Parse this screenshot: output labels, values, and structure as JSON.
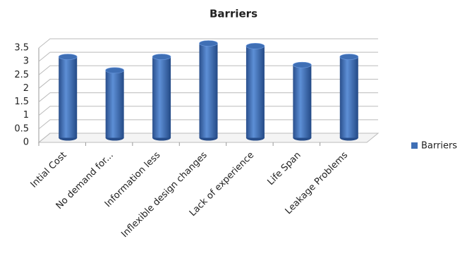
{
  "chart_data": {
    "type": "bar",
    "title": "Barriers",
    "categories": [
      "Intial Cost",
      "No demand for...",
      "Information less",
      "Inflexible design changes",
      "Lack of experience",
      "Life Span",
      "Leakage Problems"
    ],
    "series": [
      {
        "name": "Barriers",
        "color": "#3f6fb5",
        "values": [
          3,
          2.5,
          3,
          3.5,
          3.4,
          2.7,
          3
        ]
      }
    ],
    "ylim": [
      0,
      3.5
    ],
    "yticks": [
      0,
      0.5,
      1,
      1.5,
      2,
      2.5,
      3,
      3.5
    ],
    "grid": true,
    "legend": "right"
  }
}
